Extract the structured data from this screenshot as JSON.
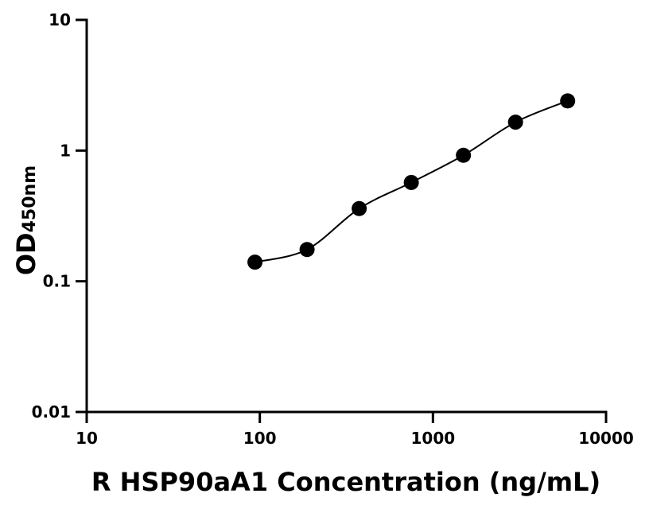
{
  "chart_data": {
    "type": "scatter",
    "xlabel": "R HSP90aA1 Concentration (ng/mL)",
    "ylabel": "OD",
    "ylabel_sub": "450nm",
    "x_scale": "log",
    "y_scale": "log",
    "xlim": [
      10,
      10000
    ],
    "ylim": [
      0.01,
      10
    ],
    "x_ticks": [
      "10",
      "100",
      "1000",
      "10000"
    ],
    "y_ticks": [
      "0.01",
      "0.1",
      "1",
      "10"
    ],
    "grid": false,
    "legend": "none",
    "fit_curve": true,
    "marker_color": "#000000",
    "series": [
      {
        "x": [
          93.75,
          187.5,
          375,
          750,
          1500,
          3000,
          6000
        ],
        "y": [
          0.14,
          0.175,
          0.36,
          0.57,
          0.92,
          1.65,
          2.4
        ]
      }
    ]
  }
}
